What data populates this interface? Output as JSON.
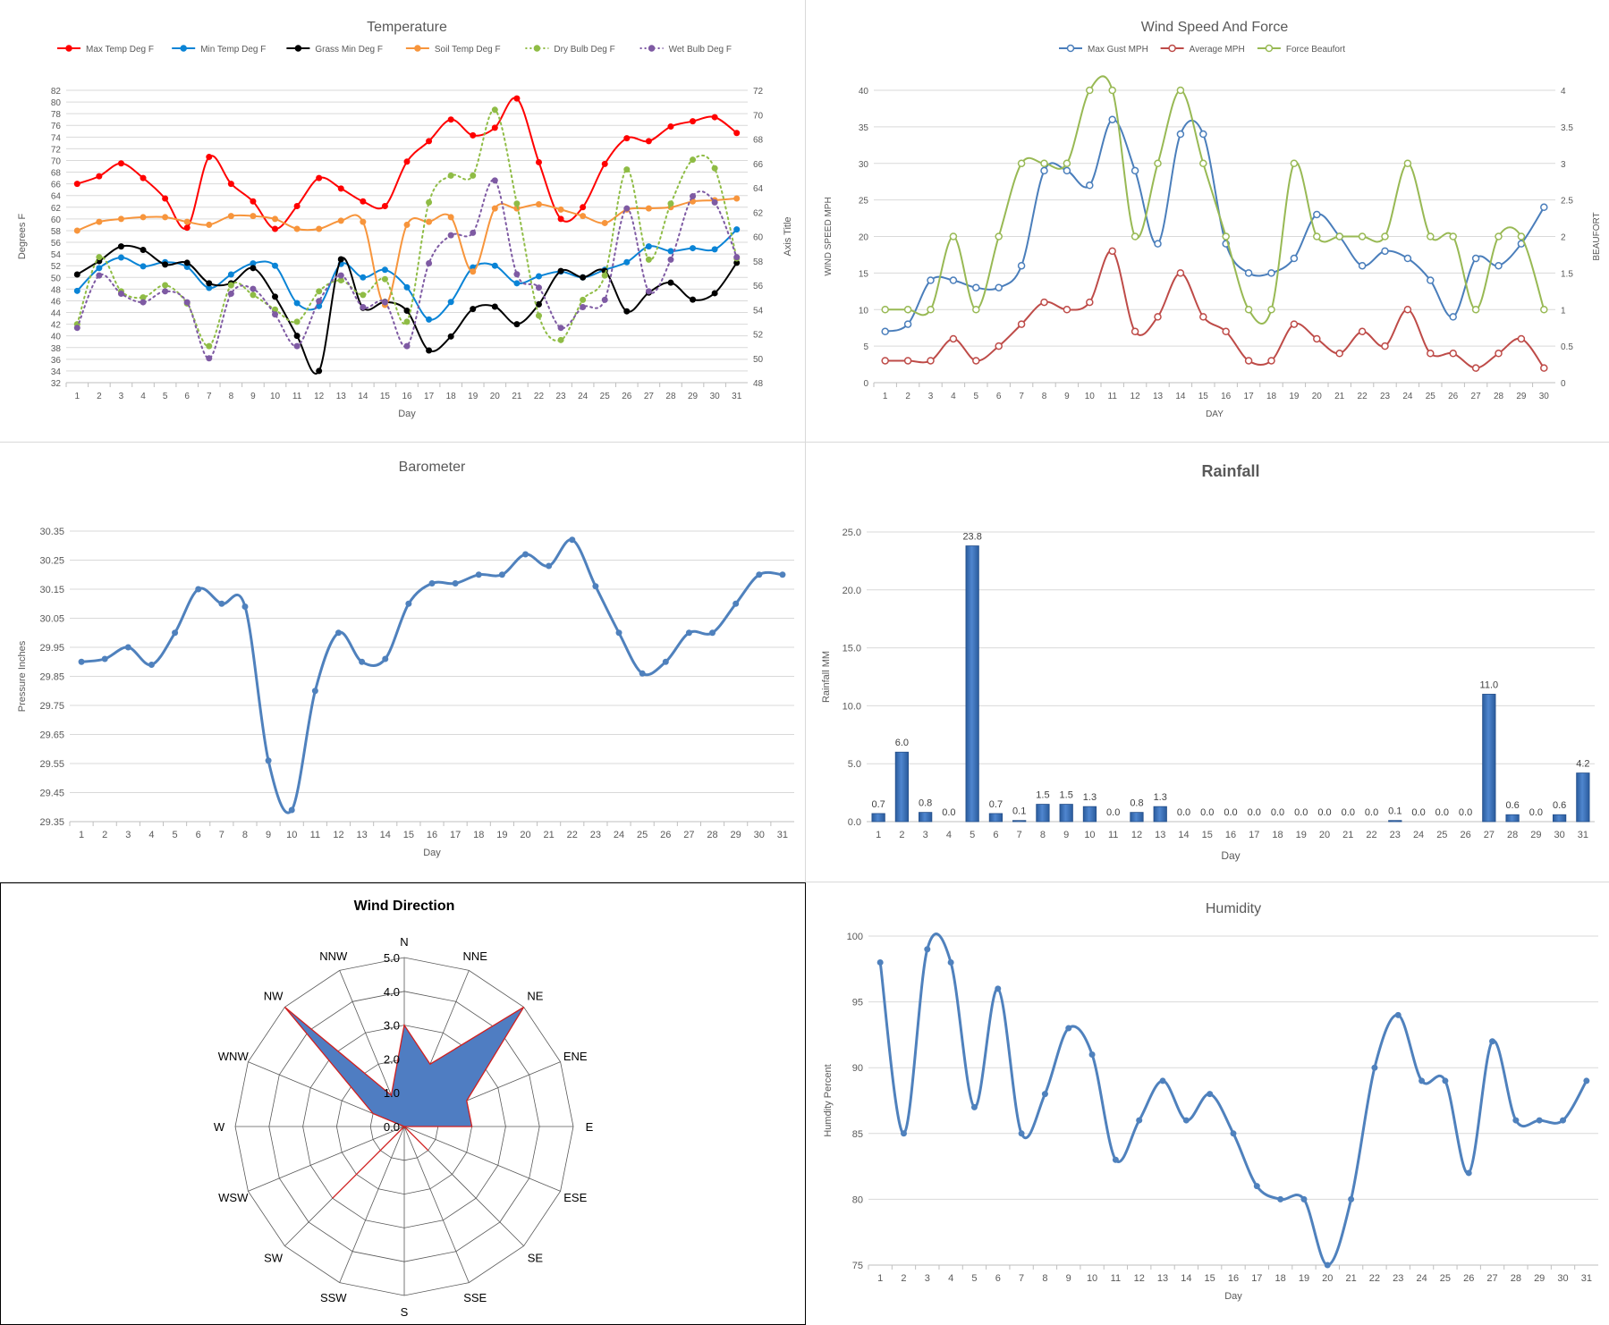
{
  "chart_data": [
    {
      "type": "line",
      "title": "Temperature",
      "xlabel": "Day",
      "ylabel": "Degrees F",
      "ylabel_right": "Axis Title",
      "ylim": [
        32,
        82
      ],
      "ylim_right": [
        48,
        72
      ],
      "y_ticks": [
        32,
        34,
        36,
        38,
        40,
        42,
        44,
        46,
        48,
        50,
        52,
        54,
        56,
        58,
        60,
        62,
        64,
        66,
        68,
        70,
        72,
        74,
        76,
        78,
        80,
        82
      ],
      "y_ticks_right": [
        48,
        50,
        52,
        54,
        56,
        58,
        60,
        62,
        64,
        66,
        68,
        70,
        72
      ],
      "legend_position": "top",
      "x": [
        1,
        2,
        3,
        4,
        5,
        6,
        7,
        8,
        9,
        10,
        11,
        12,
        13,
        14,
        15,
        16,
        17,
        18,
        19,
        20,
        21,
        22,
        23,
        24,
        25,
        26,
        27,
        28,
        29,
        30,
        31
      ],
      "series": [
        {
          "name": "Max Temp Deg F",
          "color": "#ff0000",
          "dashed": false,
          "axis": "left",
          "values": [
            66,
            67.3,
            69.5,
            67,
            63.5,
            58.5,
            70.6,
            66,
            63,
            58.3,
            62.2,
            67,
            65.2,
            63,
            62.2,
            69.8,
            73.3,
            77,
            74.3,
            75.6,
            80.6,
            69.7,
            60,
            62,
            69.4,
            73.8,
            73.3,
            75.8,
            76.7,
            77.4,
            74.7
          ]
        },
        {
          "name": "Min Temp Deg F",
          "color": "#0a84d6",
          "dashed": false,
          "axis": "left",
          "values": [
            47.7,
            51.6,
            53.4,
            51.9,
            52.6,
            51.8,
            48.2,
            50.5,
            52.4,
            52,
            45.6,
            45.1,
            52.3,
            50,
            51.3,
            48.3,
            42.8,
            45.8,
            51.7,
            52,
            49,
            50.2,
            51,
            50,
            51.3,
            52.6,
            55.3,
            54.5,
            55,
            54.8,
            58.2
          ]
        },
        {
          "name": "Grass Min Deg F",
          "color": "#000000",
          "dashed": false,
          "axis": "left",
          "values": [
            50.5,
            52.8,
            55.3,
            54.7,
            52.2,
            52.5,
            49,
            49,
            51.6,
            46.7,
            40,
            34,
            53.1,
            44.8,
            45.8,
            44.3,
            37.5,
            39.9,
            44.6,
            45,
            42,
            45.4,
            51.1,
            50,
            51.1,
            44.2,
            47.4,
            49.1,
            46.2,
            47.3,
            52.5
          ]
        },
        {
          "name": "Soil Temp Deg F",
          "color": "#f7953c",
          "dashed": false,
          "axis": "left",
          "values": [
            58,
            59.5,
            60,
            60.3,
            60.3,
            59.5,
            59,
            60.5,
            60.5,
            60,
            58.3,
            58.3,
            59.7,
            59.5,
            45.3,
            59,
            59.5,
            60.3,
            51,
            61.8,
            61.8,
            62.5,
            61.6,
            60.5,
            59.3,
            61.6,
            61.8,
            62,
            63,
            63.2,
            63.5
          ]
        },
        {
          "name": "Dry Bulb Deg F",
          "color": "#8fbc45",
          "dashed": true,
          "axis": "right",
          "values": [
            52.8,
            58.3,
            55.5,
            55,
            56,
            54.5,
            51,
            56,
            55.2,
            54,
            53,
            55.5,
            56.4,
            55.2,
            56.5,
            53,
            62.8,
            65,
            65,
            70.4,
            62.7,
            53.5,
            51.5,
            54.8,
            56.8,
            65.5,
            58.1,
            62.7,
            66.3,
            65.6,
            58.2
          ]
        },
        {
          "name": "Wet Bulb Deg F",
          "color": "#7e5aa3",
          "dashed": true,
          "axis": "right",
          "values": [
            52.5,
            56.8,
            55.3,
            54.6,
            55.5,
            54.6,
            50,
            55.3,
            55.7,
            53.6,
            51,
            54.7,
            56.8,
            54.2,
            54.6,
            51,
            57.8,
            60.1,
            60.3,
            64.6,
            56.9,
            55.8,
            52.5,
            54.2,
            54.8,
            62.3,
            55.5,
            58.1,
            63.3,
            62.8,
            58.3
          ]
        }
      ]
    },
    {
      "type": "line",
      "title": "Wind Speed And Force",
      "xlabel": "DAY",
      "ylabel": "WIND SPEED MPH",
      "ylabel_right": "BEAUFORT",
      "ylim": [
        0,
        40
      ],
      "ylim_right": [
        0,
        4
      ],
      "y_ticks": [
        0,
        5,
        10,
        15,
        20,
        25,
        30,
        35,
        40
      ],
      "y_ticks_right": [
        0,
        0.5,
        1,
        1.5,
        2,
        2.5,
        3,
        3.5,
        4
      ],
      "legend_position": "top",
      "x": [
        1,
        2,
        3,
        4,
        5,
        6,
        7,
        8,
        9,
        10,
        11,
        12,
        13,
        14,
        15,
        16,
        17,
        18,
        19,
        20,
        21,
        22,
        23,
        24,
        25,
        26,
        27,
        28,
        29,
        30
      ],
      "series": [
        {
          "name": "Max Gust MPH",
          "color": "#4a7ebb",
          "axis": "left",
          "values": [
            7,
            8,
            14,
            14,
            13,
            13,
            16,
            29,
            29,
            27,
            36,
            29,
            19,
            34,
            34,
            19,
            15,
            15,
            17,
            23,
            20,
            16,
            18,
            17,
            14,
            9,
            17,
            16,
            19,
            24
          ]
        },
        {
          "name": "Average MPH",
          "color": "#be4b48",
          "axis": "left",
          "values": [
            3,
            3,
            3,
            6,
            3,
            5,
            8,
            11,
            10,
            11,
            18,
            7,
            9,
            15,
            9,
            7,
            3,
            3,
            8,
            6,
            4,
            7,
            5,
            10,
            4,
            4,
            2,
            4,
            6,
            2
          ]
        },
        {
          "name": "Force Beaufort",
          "color": "#98b954",
          "axis": "right",
          "values": [
            1,
            1,
            1,
            2,
            1,
            2,
            3,
            3,
            3,
            4,
            4,
            2,
            3,
            4,
            3,
            2,
            1,
            1,
            3,
            2,
            2,
            2,
            2,
            3,
            2,
            2,
            1,
            2,
            2,
            1
          ]
        }
      ]
    },
    {
      "type": "line",
      "title": "Barometer",
      "xlabel": "Day",
      "ylabel": "Pressure Inches",
      "ylim": [
        29.35,
        30.35
      ],
      "y_ticks": [
        "29.35",
        "29.45",
        "29.55",
        "29.65",
        "29.75",
        "29.85",
        "29.95",
        "30.05",
        "30.15",
        "30.25",
        "30.35"
      ],
      "x": [
        1,
        2,
        3,
        4,
        5,
        6,
        7,
        8,
        9,
        10,
        11,
        12,
        13,
        14,
        15,
        16,
        17,
        18,
        19,
        20,
        21,
        22,
        23,
        24,
        25,
        26,
        27,
        28,
        29,
        30,
        31
      ],
      "series": [
        {
          "color": "#4f81bd",
          "values": [
            29.9,
            29.91,
            29.95,
            29.89,
            30,
            30.15,
            30.1,
            30.09,
            29.56,
            29.39,
            29.8,
            30,
            29.9,
            29.91,
            30.1,
            30.17,
            30.17,
            30.2,
            30.2,
            30.27,
            30.23,
            30.32,
            30.16,
            30,
            29.86,
            29.9,
            30,
            30,
            30.1,
            30.2,
            30.2
          ]
        }
      ]
    },
    {
      "type": "bar",
      "title": "Rainfall",
      "xlabel": "Day",
      "ylabel": "Rainfall MM",
      "ylim": [
        0,
        25
      ],
      "y_ticks": [
        "0.0",
        "5.0",
        "10.0",
        "15.0",
        "20.0",
        "25.0"
      ],
      "categories": [
        1,
        2,
        3,
        4,
        5,
        6,
        7,
        8,
        9,
        10,
        11,
        12,
        13,
        14,
        15,
        16,
        17,
        18,
        19,
        20,
        21,
        22,
        23,
        24,
        25,
        26,
        27,
        28,
        29,
        30,
        31
      ],
      "values": [
        0.7,
        6.0,
        0.8,
        0.0,
        23.8,
        0.7,
        0.1,
        1.5,
        1.5,
        1.3,
        0.0,
        0.8,
        1.3,
        0.0,
        0.0,
        0.0,
        0.0,
        0.0,
        0.0,
        0.0,
        0.0,
        0.0,
        0.1,
        0.0,
        0.0,
        0.0,
        11.0,
        0.6,
        0.0,
        0.6,
        4.2
      ],
      "labels": [
        "0.7",
        "6.0",
        "0.8",
        "0.0",
        "23.8",
        "0.7",
        "0.1",
        "1.5",
        "1.5",
        "1.3",
        "0.0",
        "0.8",
        "1.3",
        "0.0",
        "0.0",
        "0.0",
        "0.0",
        "0.0",
        "0.0",
        "0.0",
        "0.0",
        "0.0",
        "0.1",
        "0.0",
        "0.0",
        "0.0",
        "11.0",
        "0.6",
        "0.0",
        "0.6",
        "4.2"
      ],
      "color": "#3f72b8"
    },
    {
      "type": "radar",
      "title": "Wind Direction",
      "categories": [
        "N",
        "NNE",
        "NE",
        "ENE",
        "E",
        "ESE",
        "SE",
        "SSE",
        "S",
        "SSW",
        "SW",
        "WSW",
        "W",
        "WNW",
        "NW",
        "NNW"
      ],
      "values": [
        3,
        2,
        5,
        2,
        2,
        0,
        1,
        0,
        0,
        0,
        3,
        0,
        0,
        1,
        5,
        1
      ],
      "rlim": [
        0,
        5
      ],
      "r_ticks": [
        "0.0",
        "1.0",
        "2.0",
        "3.0",
        "4.0",
        "5.0"
      ],
      "fill": "#4f7dc2",
      "line": "#d11f1f"
    },
    {
      "type": "line",
      "title": "Humidity",
      "xlabel": "Day",
      "ylabel": "Humdity Percent",
      "ylim": [
        75,
        100
      ],
      "y_ticks": [
        75,
        80,
        85,
        90,
        95,
        100
      ],
      "x": [
        1,
        2,
        3,
        4,
        5,
        6,
        7,
        8,
        9,
        10,
        11,
        12,
        13,
        14,
        15,
        16,
        17,
        18,
        19,
        20,
        21,
        22,
        23,
        24,
        25,
        26,
        27,
        28,
        29,
        30,
        31
      ],
      "series": [
        {
          "color": "#4f81bd",
          "values": [
            98,
            85,
            99,
            98,
            87,
            96,
            85,
            88,
            93,
            91,
            83,
            86,
            89,
            86,
            88,
            85,
            81,
            80,
            80,
            75,
            80,
            90,
            94,
            89,
            89,
            82,
            92,
            86,
            86,
            86,
            89
          ]
        }
      ]
    }
  ]
}
